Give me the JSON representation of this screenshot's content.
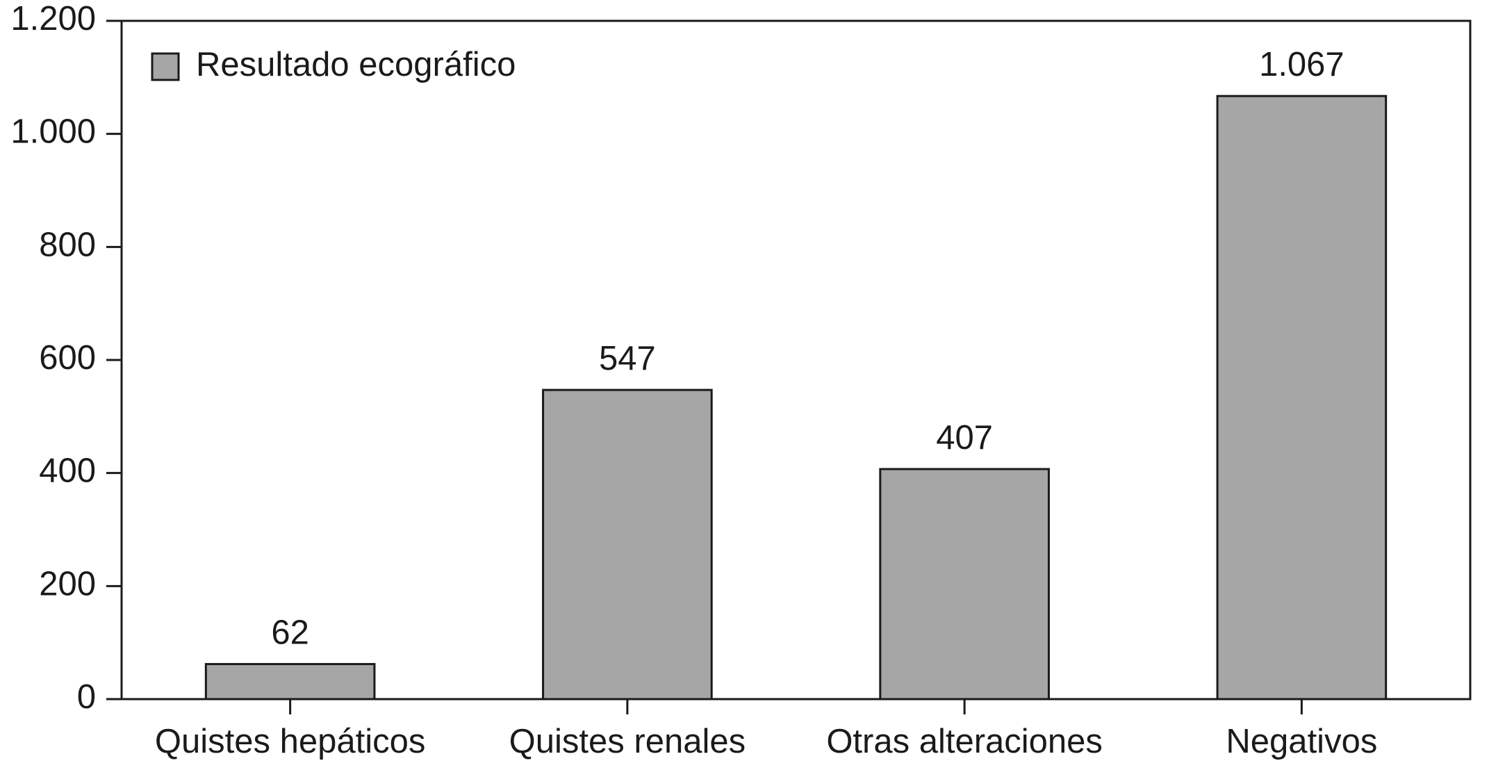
{
  "chart_data": {
    "type": "bar",
    "categories": [
      "Quistes hepáticos",
      "Quistes renales",
      "Otras alteraciones",
      "Negativos"
    ],
    "series": [
      {
        "name": "Resultado ecográfico",
        "color": "#a6a6a6",
        "values": [
          62,
          547,
          407,
          1067
        ],
        "value_labels": [
          "62",
          "547",
          "407",
          "1.067"
        ]
      }
    ],
    "ylim": [
      0,
      1200
    ],
    "yticks": [
      0,
      200,
      400,
      600,
      800,
      {
        "value": 1000,
        "label": "1.000"
      },
      {
        "value": 1200,
        "label": "1.200"
      }
    ],
    "legend": "top-left"
  }
}
